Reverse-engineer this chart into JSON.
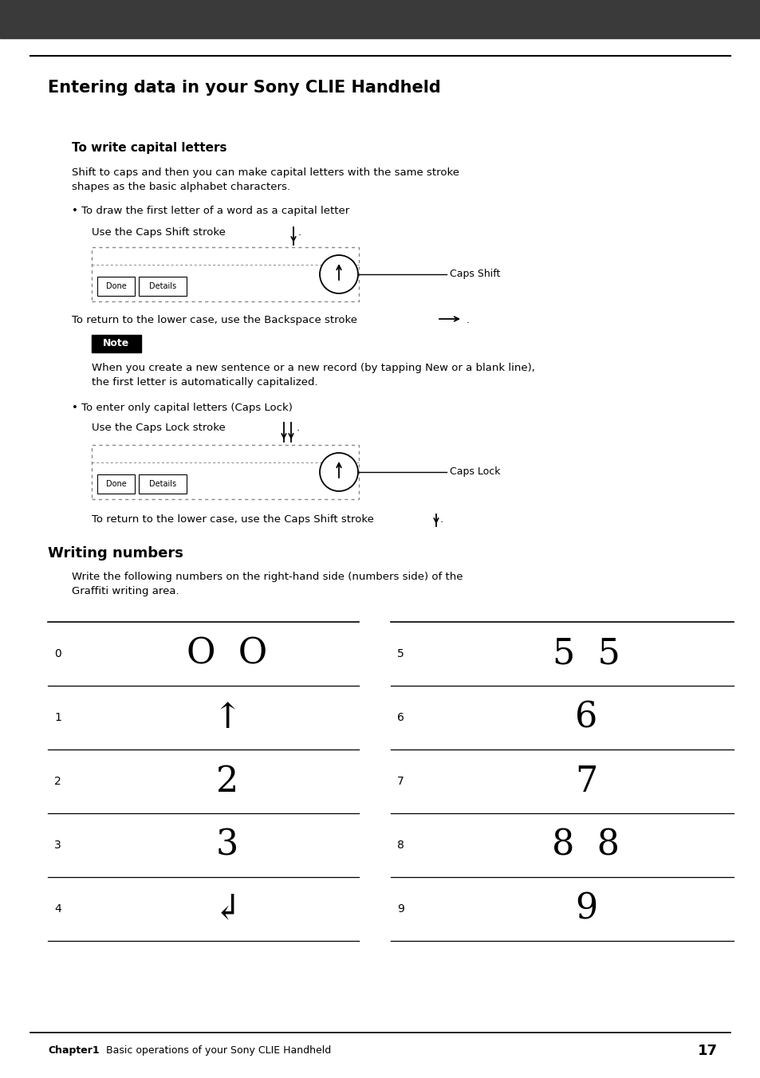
{
  "header_bg": "#3a3a3a",
  "bg_color": "#ffffff",
  "text_color": "#000000",
  "body_fontsize": 9.5,
  "page_title": "Entering data in your Sony CLIE Handheld",
  "section1_title": "To write capital letters",
  "section1_body1": "Shift to caps and then you can make capital letters with the same stroke\nshapes as the basic alphabet characters.",
  "bullet1_text": "• To draw the first letter of a word as a capital letter",
  "caps_shift_label": "Caps Shift",
  "backspace_line": "To return to the lower case, use the Backspace stroke",
  "note_label": "Note",
  "note_body": "When you create a new sentence or a new record (by tapping New or a blank line),\nthe first letter is automatically capitalized.",
  "bullet2_text": "• To enter only capital letters (Caps Lock)",
  "caps_lock_line": "Use the Caps Lock stroke",
  "caps_lock_label": "Caps Lock",
  "return_lower_line": "To return to the lower case, use the Caps Shift stroke",
  "section2_title": "Writing numbers",
  "section2_body": "Write the following numbers on the right-hand side (numbers side) of the\nGraffiti writing area.",
  "footer_chapter": "Chapter1",
  "footer_body": "  Basic operations of your Sony CLIE Handheld",
  "footer_page": "17",
  "numbers_left": [
    "0",
    "1",
    "2",
    "3",
    "4"
  ],
  "numbers_right": [
    "5",
    "6",
    "7",
    "8",
    "9"
  ],
  "graffiti_left": [
    "O  O",
    "↑",
    "2",
    "3",
    "↲"
  ],
  "graffiti_right": [
    "5  5",
    "6",
    "7",
    "8  8",
    "9"
  ]
}
